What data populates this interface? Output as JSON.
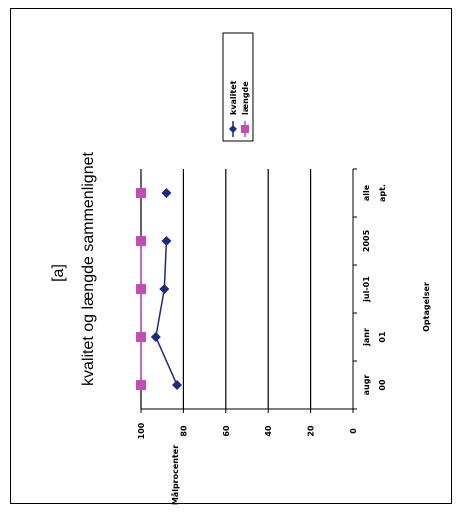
{
  "chart_data": {
    "type": "line",
    "orientation": "rotated-90-ccw",
    "title_line1": "[a]",
    "title_line2": "kvalitet og længde sammenlignet",
    "xlabel": "Optagelser",
    "ylabel": "Målprocenter",
    "categories": [
      [
        "augr",
        "00"
      ],
      [
        "janr",
        "01"
      ],
      [
        "jul-01",
        ""
      ],
      [
        "2005",
        ""
      ],
      [
        "alle",
        "apt."
      ]
    ],
    "ylim": [
      0,
      100
    ],
    "yticks": [
      "0",
      "20",
      "40",
      "60",
      "80",
      "100"
    ],
    "grid": true,
    "legend_position": "right",
    "series": [
      {
        "name": "kvalitet",
        "color": "#1f2a7a",
        "marker": "diamond",
        "values": [
          83,
          93,
          89,
          88,
          88
        ],
        "connect_last": false
      },
      {
        "name": "længde",
        "color": "#c04fb0",
        "marker": "square",
        "values": [
          100,
          100,
          100,
          100,
          100
        ],
        "connect_last": false
      }
    ]
  }
}
